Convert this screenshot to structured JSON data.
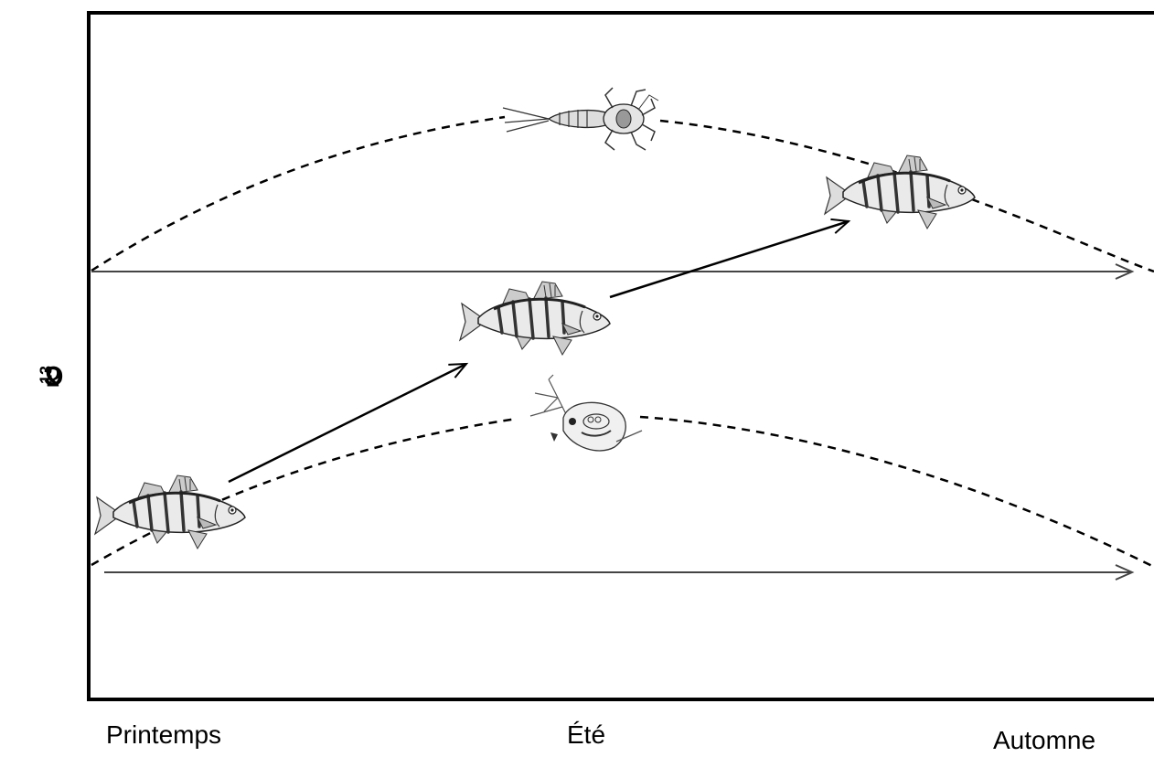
{
  "axis": {
    "ylabel_main": "δ",
    "ylabel_sup": "13",
    "ylabel_end": "C"
  },
  "seasons": [
    "Printemps",
    "Été",
    "Automne"
  ],
  "icons": {
    "top_prey": "mayfly-larva-icon",
    "bottom_prey": "zooplankton-icon",
    "fish": "perch-fish-icon"
  },
  "colors": {
    "frame": "#000000",
    "dashed": "#000000",
    "baseline_arrow": "#555555",
    "fish_body": "#e8e8e8",
    "fish_stripes": "#333333"
  }
}
